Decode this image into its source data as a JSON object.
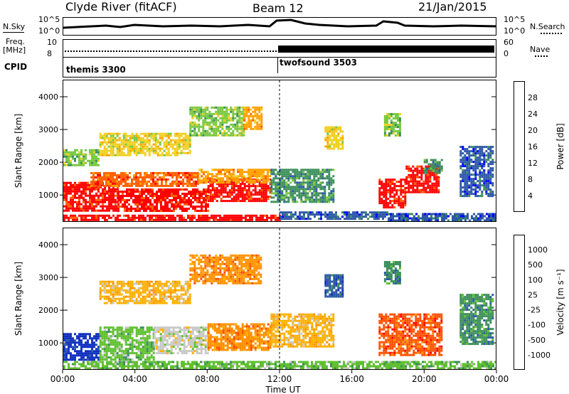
{
  "header": {
    "station": "Clyde River (fitACF)",
    "beam": "Beam 12",
    "date": "21/Jan/2015"
  },
  "strips": {
    "nsky_label": "N.Sky",
    "nsky_ticks": [
      "10^5",
      "10^0"
    ],
    "nsearch_label": "N.Search",
    "freq_label": "Freq.",
    "freq_unit": "[MHz]",
    "freq_ticks": [
      "10",
      "8"
    ],
    "nave_label": "Nave",
    "nave_ticks": [
      "60",
      "0"
    ],
    "cpid_label": "CPID",
    "cpid_segments": [
      {
        "name": "themis 3300",
        "start_hour": 0
      },
      {
        "name": "twofsound 3503",
        "start_hour": 12
      }
    ]
  },
  "chart_data": [
    {
      "type": "heatmap",
      "panel": "power",
      "ylabel": "Slant Range [km]",
      "ylim": [
        200,
        4500
      ],
      "yticks": [
        1000,
        2000,
        3000,
        4000
      ],
      "xlim_hours": [
        0,
        24
      ],
      "colorbar_label": "Power [dB]",
      "colorbar_ticks": [
        "28",
        "24",
        "20",
        "16",
        "12",
        "8",
        "4"
      ],
      "colorbar_colors": [
        "#0000ff",
        "#2d58a8",
        "#3c8f5a",
        "#78c840",
        "#f0d020",
        "#ffa000",
        "#ff6000",
        "#ff0000"
      ],
      "regions": [
        {
          "t0": 0.0,
          "t1": 3.0,
          "r0": 500,
          "r1": 1400,
          "c": 7
        },
        {
          "t0": 3.0,
          "t1": 8.0,
          "r0": 500,
          "r1": 1200,
          "c": 7
        },
        {
          "t0": 8.0,
          "t1": 11.5,
          "r0": 800,
          "r1": 1500,
          "c": 7
        },
        {
          "t0": 1.5,
          "t1": 7.5,
          "r0": 1300,
          "r1": 1700,
          "c": 6
        },
        {
          "t0": 7.5,
          "t1": 11.5,
          "r0": 1400,
          "r1": 1800,
          "c": 5
        },
        {
          "t0": 11.5,
          "t1": 15.0,
          "r0": 800,
          "r1": 1800,
          "c": 2
        },
        {
          "t0": 17.5,
          "t1": 19.0,
          "r0": 600,
          "r1": 1500,
          "c": 7
        },
        {
          "t0": 19.0,
          "t1": 20.8,
          "r0": 1100,
          "r1": 1900,
          "c": 7
        },
        {
          "t0": 20.0,
          "t1": 21.0,
          "r0": 1700,
          "r1": 2100,
          "c": 2
        },
        {
          "t0": 0.0,
          "t1": 2.0,
          "r0": 1900,
          "r1": 2400,
          "c": 3
        },
        {
          "t0": 2.0,
          "t1": 7.0,
          "r0": 2200,
          "r1": 2900,
          "c": 4
        },
        {
          "t0": 7.0,
          "t1": 10.0,
          "r0": 2800,
          "r1": 3700,
          "c": 3
        },
        {
          "t0": 10.0,
          "t1": 11.0,
          "r0": 3000,
          "r1": 3700,
          "c": 5
        },
        {
          "t0": 0.0,
          "t1": 12.0,
          "r0": 250,
          "r1": 400,
          "c": 7
        },
        {
          "t0": 12.0,
          "t1": 18.0,
          "r0": 250,
          "r1": 500,
          "c": 1
        },
        {
          "t0": 18.0,
          "t1": 24.0,
          "r0": 250,
          "r1": 450,
          "c": 1
        },
        {
          "t0": 14.5,
          "t1": 15.5,
          "r0": 2400,
          "r1": 3100,
          "c": 4
        },
        {
          "t0": 17.8,
          "t1": 18.7,
          "r0": 2800,
          "r1": 3500,
          "c": 3
        },
        {
          "t0": 22.0,
          "t1": 23.8,
          "r0": 1000,
          "r1": 2500,
          "c": 1
        }
      ]
    },
    {
      "type": "heatmap",
      "panel": "velocity",
      "ylabel": "Slant Range [km]",
      "ylim": [
        200,
        4500
      ],
      "yticks": [
        1000,
        2000,
        3000,
        4000
      ],
      "xlim_hours": [
        0,
        24
      ],
      "xticks": [
        "00:00",
        "04:00",
        "08:00",
        "12:00",
        "16:00",
        "20:00",
        "00:00"
      ],
      "xlabel": "Time UT",
      "colorbar_label": "Velocity [m s⁻¹]",
      "colorbar_ticks": [
        "1000",
        "500",
        "100",
        "25",
        "-25",
        "-100",
        "-500",
        "-1000"
      ],
      "colorbar_colors": [
        "#ff0000",
        "#ff5000",
        "#ff9000",
        "#ffb000",
        "#c8c8c8",
        "#60c030",
        "#3c8f5a",
        "#2d58a8",
        "#1030c0"
      ],
      "regions": [
        {
          "t0": 0.0,
          "t1": 2.0,
          "r0": 500,
          "r1": 1300,
          "c": 8
        },
        {
          "t0": 2.0,
          "t1": 5.0,
          "r0": 500,
          "r1": 1500,
          "c": 5
        },
        {
          "t0": 5.0,
          "t1": 8.0,
          "r0": 700,
          "r1": 1500,
          "c": 4
        },
        {
          "t0": 8.0,
          "t1": 11.5,
          "r0": 800,
          "r1": 1600,
          "c": 2
        },
        {
          "t0": 11.5,
          "t1": 15.0,
          "r0": 900,
          "r1": 1900,
          "c": 3
        },
        {
          "t0": 17.5,
          "t1": 21.0,
          "r0": 600,
          "r1": 1900,
          "c": 1
        },
        {
          "t0": 2.0,
          "t1": 7.0,
          "r0": 2200,
          "r1": 2900,
          "c": 3
        },
        {
          "t0": 7.0,
          "t1": 11.0,
          "r0": 2800,
          "r1": 3700,
          "c": 2
        },
        {
          "t0": 0.0,
          "t1": 24.0,
          "r0": 250,
          "r1": 450,
          "c": 5
        },
        {
          "t0": 14.5,
          "t1": 15.5,
          "r0": 2400,
          "r1": 3100,
          "c": 7
        },
        {
          "t0": 17.8,
          "t1": 18.7,
          "r0": 2800,
          "r1": 3500,
          "c": 6
        },
        {
          "t0": 22.0,
          "t1": 23.8,
          "r0": 1000,
          "r1": 2500,
          "c": 6
        }
      ]
    }
  ]
}
